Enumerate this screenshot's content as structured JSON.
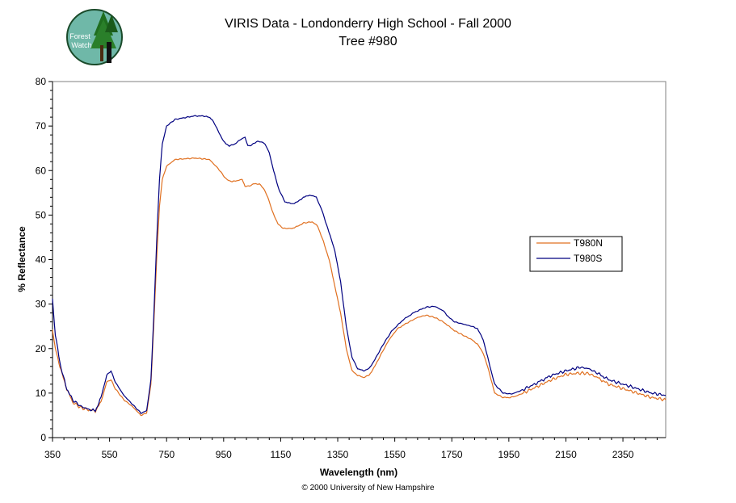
{
  "header": {
    "title_line1": "VIRIS Data - Londonderry High School - Fall 2000",
    "title_line2": "Tree #980",
    "logo_text_1": "Forest",
    "logo_text_2": "Watch"
  },
  "footer": {
    "copyright": "© 2000 University of New Hampshire"
  },
  "chart_data": {
    "type": "line",
    "title": "VIRIS Data - Londonderry High School - Fall 2000",
    "subtitle": "Tree #980",
    "xlabel": "Wavelength (nm)",
    "ylabel": "% Reflectance",
    "xlim": [
      350,
      2500
    ],
    "ylim": [
      0,
      80
    ],
    "x_ticks": [
      350,
      550,
      750,
      950,
      1150,
      1350,
      1550,
      1750,
      1950,
      2150,
      2350
    ],
    "y_ticks": [
      0,
      10,
      20,
      30,
      40,
      50,
      60,
      70,
      80
    ],
    "grid": false,
    "legend_position": "right",
    "series": [
      {
        "name": "T980N",
        "color": "#e07020",
        "points": [
          [
            350,
            24
          ],
          [
            360,
            20
          ],
          [
            380,
            15
          ],
          [
            400,
            11
          ],
          [
            420,
            8
          ],
          [
            450,
            6.7
          ],
          [
            480,
            6.2
          ],
          [
            500,
            6
          ],
          [
            520,
            8
          ],
          [
            540,
            12.5
          ],
          [
            555,
            13
          ],
          [
            570,
            11
          ],
          [
            600,
            8.5
          ],
          [
            630,
            7
          ],
          [
            660,
            5
          ],
          [
            680,
            5.5
          ],
          [
            695,
            12
          ],
          [
            705,
            25
          ],
          [
            715,
            40
          ],
          [
            725,
            52
          ],
          [
            735,
            58
          ],
          [
            750,
            61
          ],
          [
            780,
            62.5
          ],
          [
            850,
            62.8
          ],
          [
            900,
            62.5
          ],
          [
            930,
            60.5
          ],
          [
            960,
            58
          ],
          [
            980,
            57.5
          ],
          [
            1000,
            57.8
          ],
          [
            1015,
            58
          ],
          [
            1025,
            56.5
          ],
          [
            1040,
            56.5
          ],
          [
            1055,
            57
          ],
          [
            1075,
            57
          ],
          [
            1090,
            56
          ],
          [
            1105,
            54
          ],
          [
            1120,
            51
          ],
          [
            1140,
            48
          ],
          [
            1160,
            47
          ],
          [
            1190,
            47
          ],
          [
            1210,
            47.5
          ],
          [
            1230,
            48.2
          ],
          [
            1260,
            48.5
          ],
          [
            1280,
            47.5
          ],
          [
            1300,
            44
          ],
          [
            1320,
            40
          ],
          [
            1340,
            34
          ],
          [
            1360,
            28
          ],
          [
            1380,
            20
          ],
          [
            1400,
            15
          ],
          [
            1420,
            14
          ],
          [
            1440,
            13.5
          ],
          [
            1460,
            14
          ],
          [
            1480,
            16
          ],
          [
            1500,
            18.5
          ],
          [
            1530,
            22
          ],
          [
            1560,
            24.5
          ],
          [
            1600,
            26
          ],
          [
            1630,
            27
          ],
          [
            1660,
            27.5
          ],
          [
            1690,
            27
          ],
          [
            1720,
            26
          ],
          [
            1740,
            25
          ],
          [
            1760,
            24
          ],
          [
            1790,
            23
          ],
          [
            1820,
            22
          ],
          [
            1840,
            21
          ],
          [
            1860,
            19
          ],
          [
            1880,
            15
          ],
          [
            1900,
            10
          ],
          [
            1930,
            9
          ],
          [
            1950,
            9
          ],
          [
            1970,
            9.2
          ],
          [
            2000,
            10
          ],
          [
            2050,
            11.5
          ],
          [
            2100,
            13
          ],
          [
            2150,
            14.2
          ],
          [
            2200,
            14.5
          ],
          [
            2230,
            14.4
          ],
          [
            2260,
            13.5
          ],
          [
            2300,
            12
          ],
          [
            2350,
            11
          ],
          [
            2400,
            10
          ],
          [
            2450,
            9
          ],
          [
            2500,
            8.5
          ]
        ]
      },
      {
        "name": "T980S",
        "color": "#000080",
        "points": [
          [
            350,
            31
          ],
          [
            360,
            23
          ],
          [
            380,
            15.5
          ],
          [
            400,
            11
          ],
          [
            420,
            8.5
          ],
          [
            450,
            7
          ],
          [
            480,
            6.3
          ],
          [
            500,
            6
          ],
          [
            520,
            9
          ],
          [
            540,
            14
          ],
          [
            555,
            15
          ],
          [
            570,
            12.5
          ],
          [
            600,
            9.5
          ],
          [
            630,
            7.5
          ],
          [
            660,
            5.5
          ],
          [
            680,
            6
          ],
          [
            695,
            13
          ],
          [
            705,
            27
          ],
          [
            715,
            44
          ],
          [
            725,
            58
          ],
          [
            735,
            66
          ],
          [
            750,
            70
          ],
          [
            780,
            71.5
          ],
          [
            850,
            72.3
          ],
          [
            890,
            72.2
          ],
          [
            910,
            71.5
          ],
          [
            930,
            69
          ],
          [
            950,
            66.5
          ],
          [
            970,
            65.5
          ],
          [
            990,
            66
          ],
          [
            1010,
            67
          ],
          [
            1025,
            67.5
          ],
          [
            1035,
            65.5
          ],
          [
            1050,
            65.8
          ],
          [
            1065,
            66.5
          ],
          [
            1080,
            66.5
          ],
          [
            1095,
            66
          ],
          [
            1110,
            64
          ],
          [
            1125,
            60
          ],
          [
            1145,
            55.5
          ],
          [
            1165,
            53
          ],
          [
            1190,
            52.5
          ],
          [
            1210,
            53
          ],
          [
            1230,
            54
          ],
          [
            1255,
            54.5
          ],
          [
            1275,
            54
          ],
          [
            1295,
            51
          ],
          [
            1315,
            47
          ],
          [
            1340,
            42
          ],
          [
            1360,
            35
          ],
          [
            1380,
            25
          ],
          [
            1400,
            18
          ],
          [
            1420,
            15.5
          ],
          [
            1440,
            15
          ],
          [
            1460,
            15.5
          ],
          [
            1480,
            17.5
          ],
          [
            1510,
            21
          ],
          [
            1540,
            24
          ],
          [
            1580,
            26.5
          ],
          [
            1620,
            28.2
          ],
          [
            1660,
            29.3
          ],
          [
            1690,
            29.5
          ],
          [
            1720,
            28.5
          ],
          [
            1740,
            27
          ],
          [
            1760,
            26
          ],
          [
            1790,
            25.5
          ],
          [
            1820,
            25
          ],
          [
            1840,
            24.5
          ],
          [
            1860,
            22
          ],
          [
            1880,
            17
          ],
          [
            1900,
            12
          ],
          [
            1930,
            10
          ],
          [
            1960,
            9.8
          ],
          [
            1990,
            10.5
          ],
          [
            2040,
            12
          ],
          [
            2100,
            14
          ],
          [
            2150,
            15
          ],
          [
            2200,
            15.8
          ],
          [
            2230,
            15.5
          ],
          [
            2260,
            14.5
          ],
          [
            2300,
            13
          ],
          [
            2350,
            12
          ],
          [
            2400,
            11
          ],
          [
            2450,
            10
          ],
          [
            2500,
            9.5
          ]
        ]
      }
    ]
  }
}
